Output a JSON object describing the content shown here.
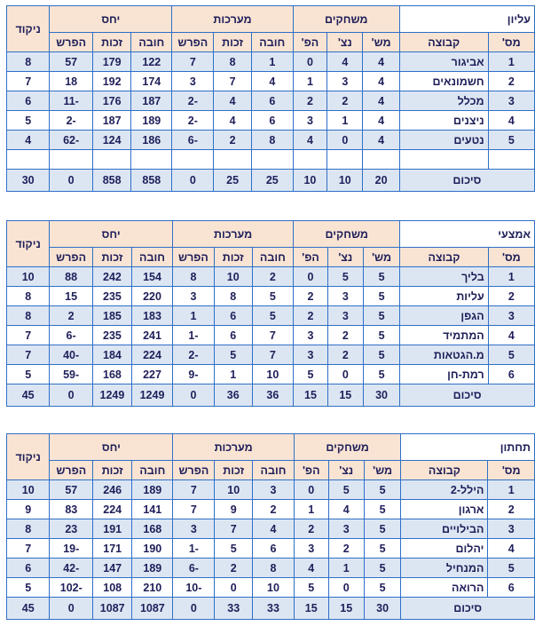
{
  "headers": {
    "num": "מס'",
    "team": "קבוצה",
    "games": "משחקים",
    "played": "מש'",
    "won": "נצ'",
    "lost": "הפ'",
    "sets": "מערכות",
    "points": "יחס",
    "debit": "חובה",
    "credit": "זכות",
    "diff": "הפרש",
    "score": "ניקוד"
  },
  "leagues": [
    {
      "title": "עליון",
      "rows": [
        {
          "num": "1",
          "team": "אביגור",
          "played": "4",
          "won": "4",
          "lost": "0",
          "sets_d": "1",
          "sets_c": "8",
          "sets_diff": "7",
          "pts_d": "122",
          "pts_c": "179",
          "pts_diff": "57",
          "score": "8"
        },
        {
          "num": "2",
          "team": "חשמונאים",
          "played": "4",
          "won": "3",
          "lost": "1",
          "sets_d": "4",
          "sets_c": "7",
          "sets_diff": "3",
          "pts_d": "174",
          "pts_c": "192",
          "pts_diff": "18",
          "score": "7"
        },
        {
          "num": "3",
          "team": "מכלל",
          "played": "4",
          "won": "2",
          "lost": "2",
          "sets_d": "6",
          "sets_c": "4",
          "sets_diff": "-2",
          "pts_d": "187",
          "pts_c": "176",
          "pts_diff": "-11",
          "score": "6"
        },
        {
          "num": "4",
          "team": "ניצנים",
          "played": "4",
          "won": "1",
          "lost": "3",
          "sets_d": "6",
          "sets_c": "4",
          "sets_diff": "-2",
          "pts_d": "189",
          "pts_c": "187",
          "pts_diff": "-2",
          "score": "5"
        },
        {
          "num": "5",
          "team": "נטעים",
          "played": "4",
          "won": "0",
          "lost": "4",
          "sets_d": "8",
          "sets_c": "2",
          "sets_diff": "-6",
          "pts_d": "186",
          "pts_c": "124",
          "pts_diff": "-62",
          "score": "4"
        }
      ],
      "total": {
        "label": "סיכום",
        "played": "20",
        "won": "10",
        "lost": "10",
        "sets_d": "25",
        "sets_c": "25",
        "sets_diff": "0",
        "pts_d": "858",
        "pts_c": "858",
        "pts_diff": "0",
        "score": "30"
      }
    },
    {
      "title": "אמצעי",
      "rows": [
        {
          "num": "1",
          "team": "בליך",
          "played": "5",
          "won": "5",
          "lost": "0",
          "sets_d": "2",
          "sets_c": "10",
          "sets_diff": "8",
          "pts_d": "154",
          "pts_c": "242",
          "pts_diff": "88",
          "score": "10"
        },
        {
          "num": "2",
          "team": "עליות",
          "played": "5",
          "won": "3",
          "lost": "2",
          "sets_d": "5",
          "sets_c": "8",
          "sets_diff": "3",
          "pts_d": "220",
          "pts_c": "235",
          "pts_diff": "15",
          "score": "8"
        },
        {
          "num": "3",
          "team": "הגפן",
          "played": "5",
          "won": "3",
          "lost": "2",
          "sets_d": "5",
          "sets_c": "6",
          "sets_diff": "1",
          "pts_d": "183",
          "pts_c": "185",
          "pts_diff": "2",
          "score": "8"
        },
        {
          "num": "4",
          "team": "המתמיד",
          "played": "5",
          "won": "2",
          "lost": "3",
          "sets_d": "7",
          "sets_c": "6",
          "sets_diff": "-1",
          "pts_d": "241",
          "pts_c": "235",
          "pts_diff": "-6",
          "score": "7"
        },
        {
          "num": "5",
          "team": "מ.הגטאות",
          "played": "5",
          "won": "2",
          "lost": "3",
          "sets_d": "7",
          "sets_c": "5",
          "sets_diff": "-2",
          "pts_d": "224",
          "pts_c": "184",
          "pts_diff": "-40",
          "score": "7"
        },
        {
          "num": "6",
          "team": "רמת-חן",
          "played": "5",
          "won": "0",
          "lost": "5",
          "sets_d": "10",
          "sets_c": "1",
          "sets_diff": "-9",
          "pts_d": "227",
          "pts_c": "168",
          "pts_diff": "-59",
          "score": "5"
        }
      ],
      "total": {
        "label": "סיכום",
        "played": "30",
        "won": "15",
        "lost": "15",
        "sets_d": "36",
        "sets_c": "36",
        "sets_diff": "0",
        "pts_d": "1249",
        "pts_c": "1249",
        "pts_diff": "0",
        "score": "45"
      }
    },
    {
      "title": "תחתון",
      "rows": [
        {
          "num": "1",
          "team": "הילל-2",
          "played": "5",
          "won": "5",
          "lost": "0",
          "sets_d": "3",
          "sets_c": "10",
          "sets_diff": "7",
          "pts_d": "189",
          "pts_c": "246",
          "pts_diff": "57",
          "score": "10"
        },
        {
          "num": "2",
          "team": "ארגון",
          "played": "5",
          "won": "4",
          "lost": "1",
          "sets_d": "2",
          "sets_c": "9",
          "sets_diff": "7",
          "pts_d": "141",
          "pts_c": "224",
          "pts_diff": "83",
          "score": "9"
        },
        {
          "num": "3",
          "team": "הבילויים",
          "played": "5",
          "won": "3",
          "lost": "2",
          "sets_d": "4",
          "sets_c": "7",
          "sets_diff": "3",
          "pts_d": "168",
          "pts_c": "191",
          "pts_diff": "23",
          "score": "8"
        },
        {
          "num": "4",
          "team": "יהלום",
          "played": "5",
          "won": "2",
          "lost": "3",
          "sets_d": "6",
          "sets_c": "5",
          "sets_diff": "-1",
          "pts_d": "190",
          "pts_c": "171",
          "pts_diff": "-19",
          "score": "7"
        },
        {
          "num": "5",
          "team": "המנחיל",
          "played": "5",
          "won": "1",
          "lost": "4",
          "sets_d": "8",
          "sets_c": "2",
          "sets_diff": "-6",
          "pts_d": "189",
          "pts_c": "147",
          "pts_diff": "-42",
          "score": "6"
        },
        {
          "num": "6",
          "team": "הרואה",
          "played": "5",
          "won": "0",
          "lost": "5",
          "sets_d": "10",
          "sets_c": "0",
          "sets_diff": "-10",
          "pts_d": "210",
          "pts_c": "108",
          "pts_diff": "-102",
          "score": "5"
        }
      ],
      "total": {
        "label": "סיכום",
        "played": "30",
        "won": "15",
        "lost": "15",
        "sets_d": "33",
        "sets_c": "33",
        "sets_diff": "0",
        "pts_d": "1087",
        "pts_c": "1087",
        "pts_diff": "0",
        "score": "45"
      }
    }
  ]
}
